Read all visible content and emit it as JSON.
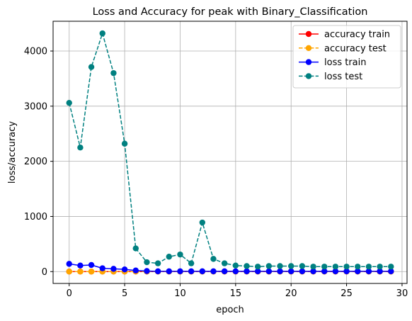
{
  "chart_data": {
    "type": "line",
    "title": "Loss and Accuracy for peak with Binary_Classification",
    "xlabel": "epoch",
    "ylabel": "loss/accuracy",
    "xlim": [
      -1.45,
      30.45
    ],
    "ylim": [
      -215,
      4540
    ],
    "xticks": [
      0,
      5,
      10,
      15,
      20,
      25,
      30
    ],
    "yticks": [
      0,
      1000,
      2000,
      3000,
      4000
    ],
    "grid": true,
    "legend_position": "top-right",
    "x": [
      0,
      1,
      2,
      3,
      4,
      5,
      6,
      7,
      8,
      9,
      10,
      11,
      12,
      13,
      14,
      15,
      16,
      17,
      18,
      19,
      20,
      21,
      22,
      23,
      24,
      25,
      26,
      27,
      28,
      29
    ],
    "series": [
      {
        "name": "accuracy train",
        "color": "#ff0000",
        "linestyle": "solid",
        "values": [
          0.7,
          0.75,
          0.78,
          0.8,
          0.81,
          0.82,
          0.83,
          0.84,
          0.85,
          0.85,
          0.86,
          0.86,
          0.86,
          0.87,
          0.87,
          0.87,
          0.88,
          0.88,
          0.88,
          0.88,
          0.88,
          0.89,
          0.89,
          0.89,
          0.89,
          0.89,
          0.89,
          0.9,
          0.9,
          0.9
        ]
      },
      {
        "name": "accuracy test",
        "color": "#ffa500",
        "linestyle": "dashed",
        "values": [
          0.6,
          0.62,
          0.65,
          0.66,
          0.67,
          0.68,
          0.7,
          0.71,
          0.72,
          0.72,
          0.73,
          0.73,
          0.74,
          0.74,
          0.75,
          0.75,
          0.75,
          0.76,
          0.76,
          0.76,
          0.77,
          0.77,
          0.77,
          0.77,
          0.78,
          0.78,
          0.78,
          0.78,
          0.78,
          0.79
        ]
      },
      {
        "name": "loss train",
        "color": "#0000ff",
        "linestyle": "solid",
        "values": [
          140,
          110,
          120,
          60,
          50,
          40,
          20,
          10,
          5,
          5,
          5,
          5,
          5,
          5,
          5,
          5,
          5,
          5,
          5,
          5,
          5,
          5,
          5,
          5,
          5,
          5,
          5,
          5,
          5,
          5
        ]
      },
      {
        "name": "loss test",
        "color": "#008080",
        "linestyle": "dashed",
        "values": [
          3060,
          2250,
          3710,
          4320,
          3600,
          2320,
          420,
          170,
          150,
          270,
          310,
          150,
          890,
          230,
          150,
          110,
          100,
          90,
          100,
          100,
          100,
          100,
          90,
          90,
          90,
          90,
          90,
          90,
          90,
          90
        ]
      }
    ]
  }
}
